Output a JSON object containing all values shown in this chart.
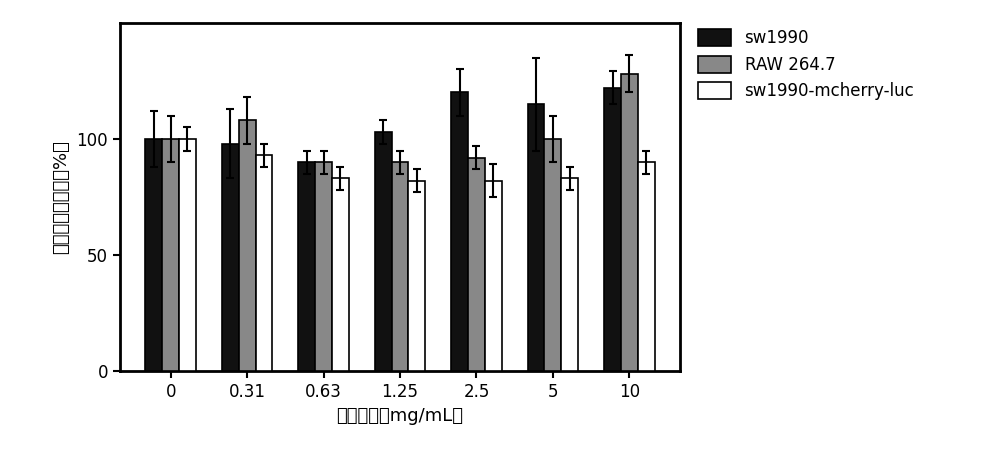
{
  "categories": [
    "0",
    "0.31",
    "0.63",
    "1.25",
    "2.5",
    "5",
    "10"
  ],
  "sw1990": [
    100,
    98,
    90,
    103,
    120,
    115,
    122
  ],
  "raw264": [
    100,
    108,
    90,
    90,
    92,
    100,
    128
  ],
  "sw1990_mcherry": [
    100,
    93,
    83,
    82,
    82,
    83,
    90
  ],
  "sw1990_err": [
    12,
    15,
    5,
    5,
    10,
    20,
    7
  ],
  "raw264_err": [
    10,
    10,
    5,
    5,
    5,
    10,
    8
  ],
  "sw1990_mcherry_err": [
    5,
    5,
    5,
    5,
    7,
    5,
    5
  ],
  "bar_colors": [
    "#111111",
    "#888888",
    "#ffffff"
  ],
  "bar_edgecolor": "#000000",
  "legend_labels": [
    "sw1990",
    "RAW 264.7",
    "sw1990-mcherry-luc"
  ],
  "xlabel": "探针浓度（mg/mL）",
  "ylabel": "细胞活性百分比（%）",
  "ylim": [
    0,
    150
  ],
  "yticks": [
    0,
    50,
    100
  ],
  "bar_width": 0.22,
  "figsize": [
    10.0,
    4.53
  ],
  "dpi": 100,
  "fontsize_labels": 13,
  "fontsize_ticks": 12,
  "fontsize_legend": 12
}
